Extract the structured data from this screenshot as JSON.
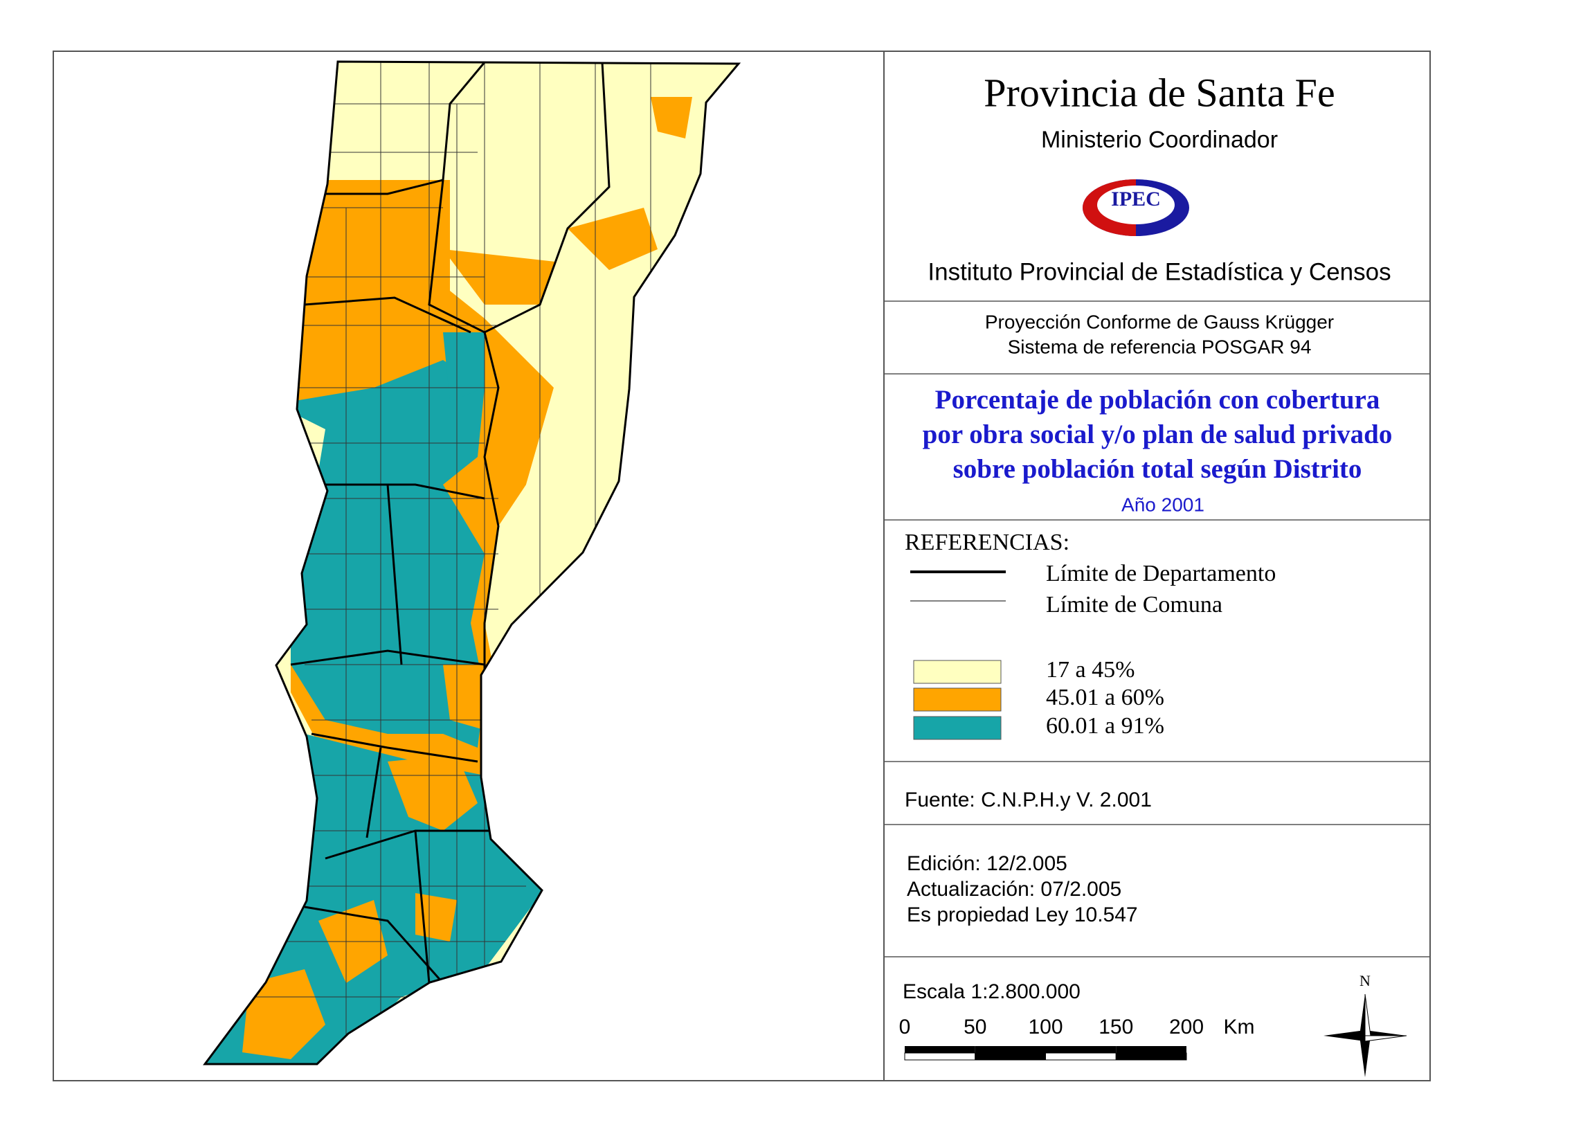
{
  "header": {
    "title": "Provincia de Santa Fe",
    "subtitle": "Ministerio Coordinador",
    "logo": "IPEC",
    "institute": "Instituto Provincial de Estadística y Censos"
  },
  "projection": [
    "Proyección Conforme de Gauss Krügger",
    "Sistema de referencia POSGAR 94"
  ],
  "map_title": {
    "lines": [
      "Porcentaje de población con cobertura",
      "por obra social y/o plan de salud privado",
      "sobre población total según Distrito"
    ],
    "year": "Año 2001"
  },
  "legend": {
    "heading": "REFERENCIAS:",
    "boundaries": [
      "Límite de Departamento",
      "Límite de Comuna"
    ],
    "classes": [
      {
        "label": "17 a 45%",
        "color": "#ffffc0"
      },
      {
        "label": "45.01 a 60%",
        "color": "#ffa500"
      },
      {
        "label": "60.01 a 91%",
        "color": "#17a5a8"
      }
    ]
  },
  "source": "Fuente:  C.N.P.H.y V. 2.001",
  "edition": [
    "Edición:  12/2.005",
    "Actualización:  07/2.005",
    "Es propiedad Ley 10.547"
  ],
  "scale": {
    "label": "Escala 1:2.800.000",
    "ticks": [
      0,
      50,
      100,
      150,
      200
    ],
    "unit": "Km"
  },
  "compass": "N"
}
